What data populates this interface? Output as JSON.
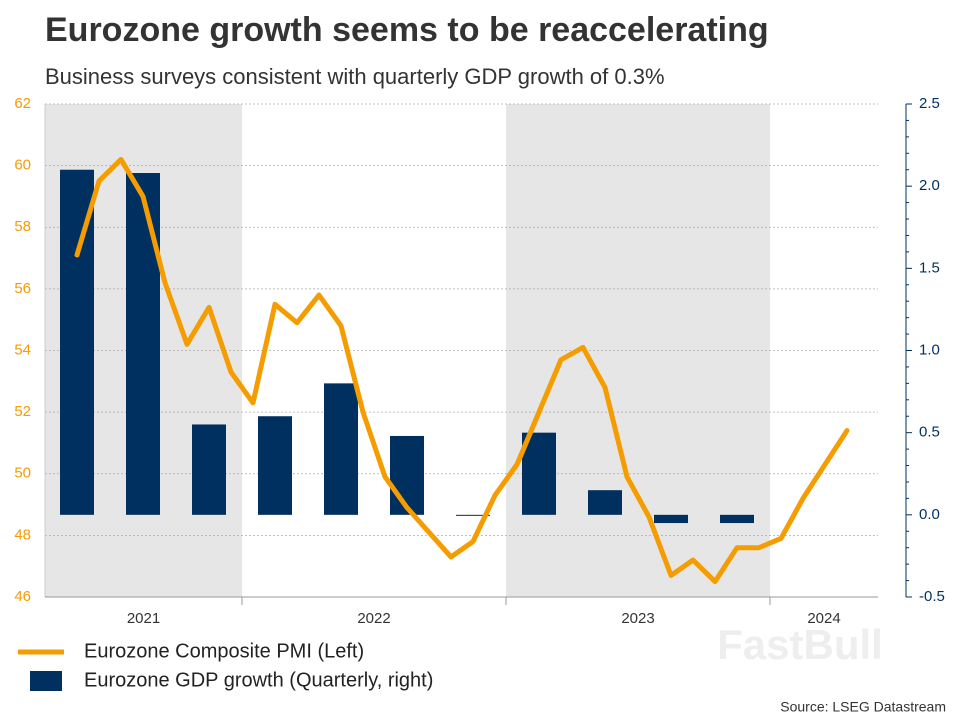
{
  "chart_data": {
    "type": "bar-line",
    "title": "Eurozone growth seems to be reaccelerating",
    "subtitle": "Business surveys consistent with quarterly GDP growth of 0.3%",
    "source": "Source: LSEG Datastream",
    "watermark": "FastBull",
    "categories": [
      null,
      null,
      null,
      null,
      null,
      null,
      null,
      null,
      null,
      null,
      null,
      null,
      null,
      null,
      null,
      null,
      null,
      null,
      null,
      null,
      null,
      null,
      null,
      null,
      null,
      null,
      null,
      null,
      null,
      null,
      null,
      null,
      null,
      null,
      null,
      null
    ],
    "year_labels": [
      "2021",
      "2022",
      "2023",
      "2024"
    ],
    "series": [
      {
        "name": "Eurozone Composite PMI (Left)",
        "type": "line",
        "color": "#f59c00",
        "values": [
          57.1,
          59.5,
          60.2,
          59.0,
          56.2,
          54.2,
          55.4,
          53.3,
          52.3,
          55.5,
          54.9,
          55.8,
          54.8,
          52.0,
          49.9,
          48.9,
          48.1,
          47.3,
          47.8,
          49.3,
          50.3,
          52.0,
          53.7,
          54.1,
          52.8,
          49.9,
          48.6,
          46.7,
          47.2,
          46.5,
          47.6,
          47.6,
          47.9,
          49.2,
          50.3,
          51.4
        ]
      },
      {
        "name": "Eurozone GDP growth (Quarterly, right)",
        "type": "bar",
        "axis": "y2",
        "color": "#00305f",
        "values": [
          2.1,
          null,
          null,
          2.08,
          null,
          null,
          0.55,
          null,
          null,
          0.6,
          null,
          null,
          0.8,
          null,
          null,
          0.48,
          null,
          null,
          0.0,
          null,
          null,
          0.5,
          null,
          null,
          0.15,
          null,
          null,
          -0.05,
          null,
          null,
          -0.05,
          null,
          null,
          null,
          null,
          null
        ]
      }
    ],
    "ylim": [
      46,
      62
    ],
    "yticks": [
      46,
      48,
      50,
      52,
      54,
      56,
      58,
      60,
      62
    ],
    "y2lim": [
      -0.5,
      2.5
    ],
    "y2ticks": [
      -0.5,
      {
        "value": 0,
        "label": "0.0"
      },
      0.5,
      {
        "value": 1,
        "label": "1.0"
      },
      1.5,
      {
        "value": 2,
        "label": "2.0"
      },
      2.5
    ],
    "grid": true,
    "legend": "bottom-left"
  }
}
